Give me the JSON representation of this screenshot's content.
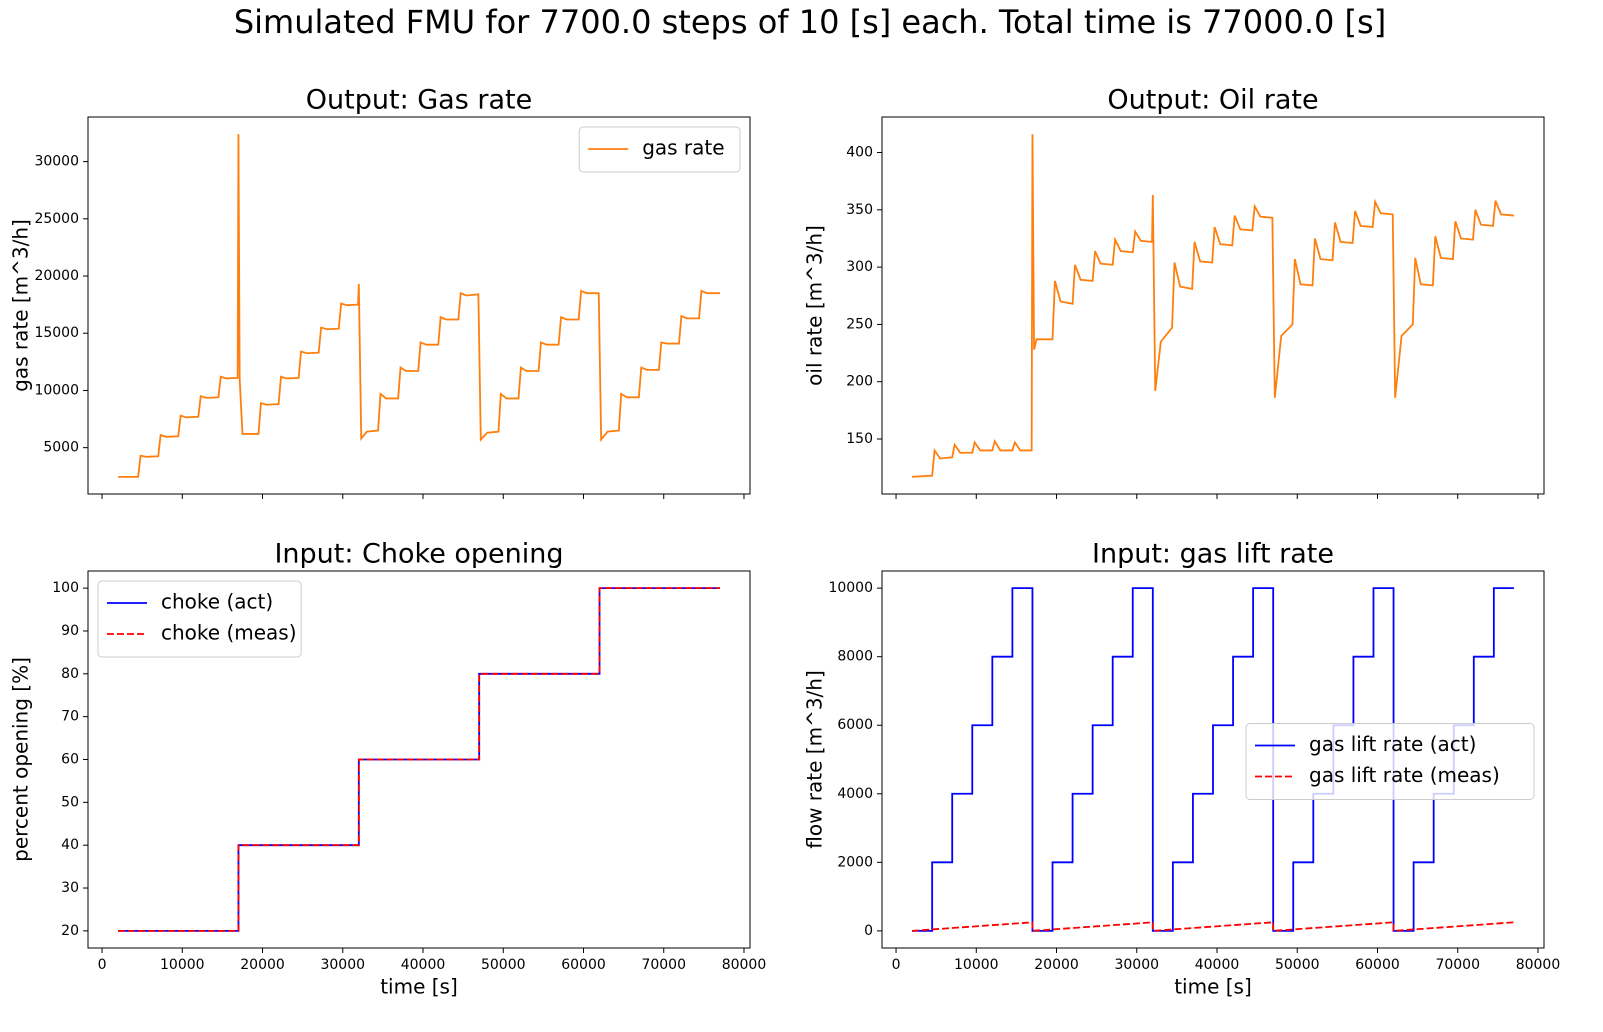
{
  "title": "Simulated FMU for 7700.0 steps of 10 [s] each. Total time is 77000.0 [s]",
  "chart_data": [
    {
      "type": "line",
      "title": "Output: Gas rate",
      "ylabel": "gas rate [m^3/h]",
      "xlim": [
        -1750,
        80750
      ],
      "xticks": [
        0,
        10000,
        20000,
        30000,
        40000,
        50000,
        60000,
        70000,
        80000
      ],
      "xtick_labels": false,
      "ylim": [
        950,
        33900
      ],
      "yticks": [
        5000,
        10000,
        15000,
        20000,
        25000,
        30000
      ],
      "legend": "upper right",
      "series": [
        {
          "name": "gas rate",
          "color": "#ff7f0e",
          "linestyle": "solid",
          "x": [
            2000,
            4500,
            4800,
            5500,
            7000,
            7300,
            8000,
            9500,
            9800,
            10500,
            12000,
            12300,
            13000,
            14500,
            14800,
            15500,
            16900,
            17000,
            17150,
            17500,
            19500,
            19800,
            20500,
            22000,
            22300,
            23000,
            24500,
            24800,
            25500,
            27000,
            27300,
            28000,
            29500,
            29800,
            30500,
            31900,
            32000,
            32300,
            33000,
            34400,
            34700,
            35400,
            36900,
            37200,
            37900,
            39400,
            39700,
            40400,
            41900,
            42200,
            42900,
            44400,
            44700,
            45400,
            46900,
            47200,
            48000,
            49400,
            49700,
            50400,
            51900,
            52200,
            52900,
            54400,
            54700,
            55400,
            56900,
            57200,
            57900,
            59400,
            59700,
            60400,
            61900,
            62200,
            63000,
            64400,
            64700,
            65400,
            66900,
            67200,
            67900,
            69400,
            69700,
            70400,
            71900,
            72200,
            72900,
            74400,
            74700,
            75400,
            77000
          ],
          "values": [
            2450,
            2450,
            4300,
            4200,
            4250,
            6100,
            5950,
            6000,
            7800,
            7650,
            7700,
            9500,
            9350,
            9400,
            11200,
            11050,
            11100,
            32400,
            11000,
            6200,
            6200,
            8900,
            8750,
            8800,
            11200,
            11050,
            11100,
            13400,
            13250,
            13300,
            15500,
            15350,
            15400,
            17600,
            17450,
            17500,
            19300,
            5800,
            6400,
            6500,
            9700,
            9300,
            9300,
            12000,
            11700,
            11700,
            14200,
            14000,
            14000,
            16400,
            16200,
            16200,
            18500,
            18300,
            18400,
            5700,
            6300,
            6400,
            9700,
            9300,
            9300,
            12000,
            11700,
            11700,
            14200,
            14000,
            14000,
            16400,
            16200,
            16200,
            18700,
            18500,
            18500,
            5700,
            6400,
            6500,
            9700,
            9400,
            9400,
            12000,
            11800,
            11800,
            14200,
            14100,
            14100,
            16500,
            16300,
            16300,
            18700,
            18500,
            18500
          ]
        }
      ]
    },
    {
      "type": "line",
      "title": "Output: Oil rate",
      "ylabel": "oil rate [m^3/h]",
      "xlim": [
        -1750,
        80750
      ],
      "xticks": [
        0,
        10000,
        20000,
        30000,
        40000,
        50000,
        60000,
        70000,
        80000
      ],
      "xtick_labels": false,
      "ylim": [
        102,
        431
      ],
      "yticks": [
        150,
        200,
        250,
        300,
        350,
        400
      ],
      "series": [
        {
          "name": "oil rate",
          "color": "#ff7f0e",
          "linestyle": "solid",
          "x": [
            2000,
            4500,
            4800,
            5500,
            7000,
            7300,
            8000,
            9500,
            9800,
            10500,
            12000,
            12300,
            13000,
            14500,
            14800,
            15500,
            16900,
            17000,
            17200,
            17500,
            19500,
            19800,
            20500,
            22000,
            22300,
            23000,
            24500,
            24800,
            25500,
            27000,
            27300,
            28000,
            29500,
            29800,
            30500,
            31900,
            32000,
            32300,
            33000,
            34400,
            34700,
            35400,
            36900,
            37200,
            37900,
            39400,
            39700,
            40400,
            41900,
            42200,
            42900,
            44400,
            44700,
            45400,
            46900,
            47200,
            48000,
            49400,
            49700,
            50400,
            51900,
            52200,
            52900,
            54400,
            54700,
            55400,
            56900,
            57200,
            57900,
            59400,
            59700,
            60400,
            61900,
            62200,
            63000,
            64400,
            64700,
            65400,
            66900,
            67200,
            67900,
            69400,
            69700,
            70400,
            71900,
            72200,
            72900,
            74400,
            74700,
            75400,
            77000
          ],
          "values": [
            117,
            118,
            140,
            133,
            134,
            145,
            138,
            138,
            147,
            140,
            140,
            148,
            140,
            140,
            147,
            140,
            140,
            416,
            228,
            237,
            237,
            288,
            270,
            268,
            302,
            289,
            288,
            314,
            303,
            302,
            324,
            314,
            313,
            331,
            323,
            322,
            363,
            192,
            235,
            247,
            304,
            283,
            281,
            322,
            305,
            304,
            335,
            320,
            319,
            345,
            333,
            332,
            353,
            344,
            343,
            186,
            240,
            250,
            307,
            285,
            284,
            325,
            307,
            306,
            339,
            322,
            321,
            349,
            336,
            335,
            357,
            347,
            346,
            186,
            240,
            250,
            308,
            285,
            284,
            327,
            308,
            307,
            340,
            325,
            324,
            350,
            337,
            336,
            358,
            346,
            345
          ]
        }
      ]
    },
    {
      "type": "line",
      "title": "Input: Choke opening",
      "ylabel": "percent opening [%]",
      "xlabel": "time [s]",
      "xlim": [
        -1750,
        80750
      ],
      "xticks": [
        0,
        10000,
        20000,
        30000,
        40000,
        50000,
        60000,
        70000,
        80000
      ],
      "xtick_labels": true,
      "ylim": [
        16,
        104
      ],
      "yticks": [
        20,
        30,
        40,
        50,
        60,
        70,
        80,
        90,
        100
      ],
      "legend": "upper left",
      "series": [
        {
          "name": "choke (act)",
          "color": "#0000ff",
          "linestyle": "solid",
          "x": [
            2000,
            17000,
            17000,
            32000,
            32000,
            47000,
            47000,
            62000,
            62000,
            77000
          ],
          "values": [
            20,
            20,
            40,
            40,
            60,
            60,
            80,
            80,
            100,
            100
          ]
        },
        {
          "name": "choke (meas)",
          "color": "#ff0000",
          "linestyle": "dashed",
          "x": [
            2000,
            17000,
            17000,
            32000,
            32000,
            47000,
            47000,
            62000,
            62000,
            77000
          ],
          "values": [
            20,
            20,
            40,
            40,
            60,
            60,
            80,
            80,
            100,
            100
          ]
        }
      ]
    },
    {
      "type": "line",
      "title": "Input: gas lift rate",
      "ylabel": "flow rate [m^3/h]",
      "xlabel": "time [s]",
      "xlim": [
        -1750,
        80750
      ],
      "xticks": [
        0,
        10000,
        20000,
        30000,
        40000,
        50000,
        60000,
        70000,
        80000
      ],
      "xtick_labels": true,
      "ylim": [
        -500,
        10500
      ],
      "yticks": [
        0,
        2000,
        4000,
        6000,
        8000,
        10000
      ],
      "legend": "center right",
      "series": [
        {
          "name": "gas lift rate (act)",
          "color": "#0000ff",
          "linestyle": "solid",
          "x": [
            2000,
            4500,
            4500,
            7000,
            7000,
            9500,
            9500,
            12000,
            12000,
            14500,
            14500,
            17000,
            17000,
            19500,
            19500,
            22000,
            22000,
            24500,
            24500,
            27000,
            27000,
            29500,
            29500,
            32000,
            32000,
            34500,
            34500,
            37000,
            37000,
            39500,
            39500,
            42000,
            42000,
            44500,
            44500,
            47000,
            47000,
            49500,
            49500,
            52000,
            52000,
            54500,
            54500,
            57000,
            57000,
            59500,
            59500,
            62000,
            62000,
            64500,
            64500,
            67000,
            67000,
            69500,
            69500,
            72000,
            72000,
            74500,
            74500,
            77000
          ],
          "values": [
            0,
            0,
            2000,
            2000,
            4000,
            4000,
            6000,
            6000,
            8000,
            8000,
            10000,
            10000,
            0,
            0,
            2000,
            2000,
            4000,
            4000,
            6000,
            6000,
            8000,
            8000,
            10000,
            10000,
            0,
            0,
            2000,
            2000,
            4000,
            4000,
            6000,
            6000,
            8000,
            8000,
            10000,
            10000,
            0,
            0,
            2000,
            2000,
            4000,
            4000,
            6000,
            6000,
            8000,
            8000,
            10000,
            10000,
            0,
            0,
            2000,
            2000,
            4000,
            4000,
            6000,
            6000,
            8000,
            8000,
            10000,
            10000
          ]
        },
        {
          "name": "gas lift rate (meas)",
          "color": "#ff0000",
          "linestyle": "dashed",
          "x": [
            2000,
            17000,
            17000,
            32000,
            32000,
            47000,
            47000,
            62000,
            62000,
            77000
          ],
          "values": [
            0,
            250,
            0,
            250,
            0,
            250,
            0,
            250,
            0,
            250
          ]
        }
      ]
    }
  ]
}
